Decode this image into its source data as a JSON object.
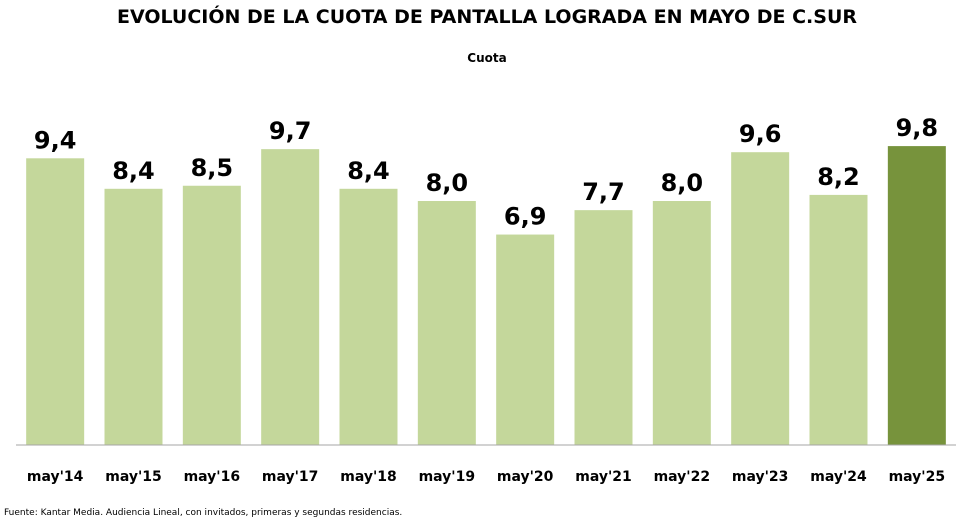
{
  "chart_data": {
    "type": "bar",
    "title": "EVOLUCIÓN DE LA CUOTA DE PANTALLA LOGRADA EN MAYO DE C.SUR",
    "subtitle": "Cuota",
    "categories": [
      "may'14",
      "may'15",
      "may'16",
      "may'17",
      "may'18",
      "may'19",
      "may'20",
      "may'21",
      "may'22",
      "may'23",
      "may'24",
      "may'25"
    ],
    "values": [
      9.4,
      8.4,
      8.5,
      9.7,
      8.4,
      8.0,
      6.9,
      7.7,
      8.0,
      9.6,
      8.2,
      9.8
    ],
    "value_labels": [
      "9,4",
      "8,4",
      "8,5",
      "9,7",
      "8,4",
      "8,0",
      "6,9",
      "7,7",
      "8,0",
      "9,6",
      "8,2",
      "9,8"
    ],
    "xlabel": "",
    "ylabel": "",
    "ylim": [
      0,
      10
    ],
    "grid": false,
    "legend": "none",
    "colors": {
      "bar": "#c4d79b",
      "highlight": "#77933c",
      "axis": "#a6a6a6"
    },
    "highlight_index": 11
  },
  "footer": {
    "source": "Fuente: Kantar Media. Audiencia Lineal, con invitados, primeras y segundas residencias."
  }
}
